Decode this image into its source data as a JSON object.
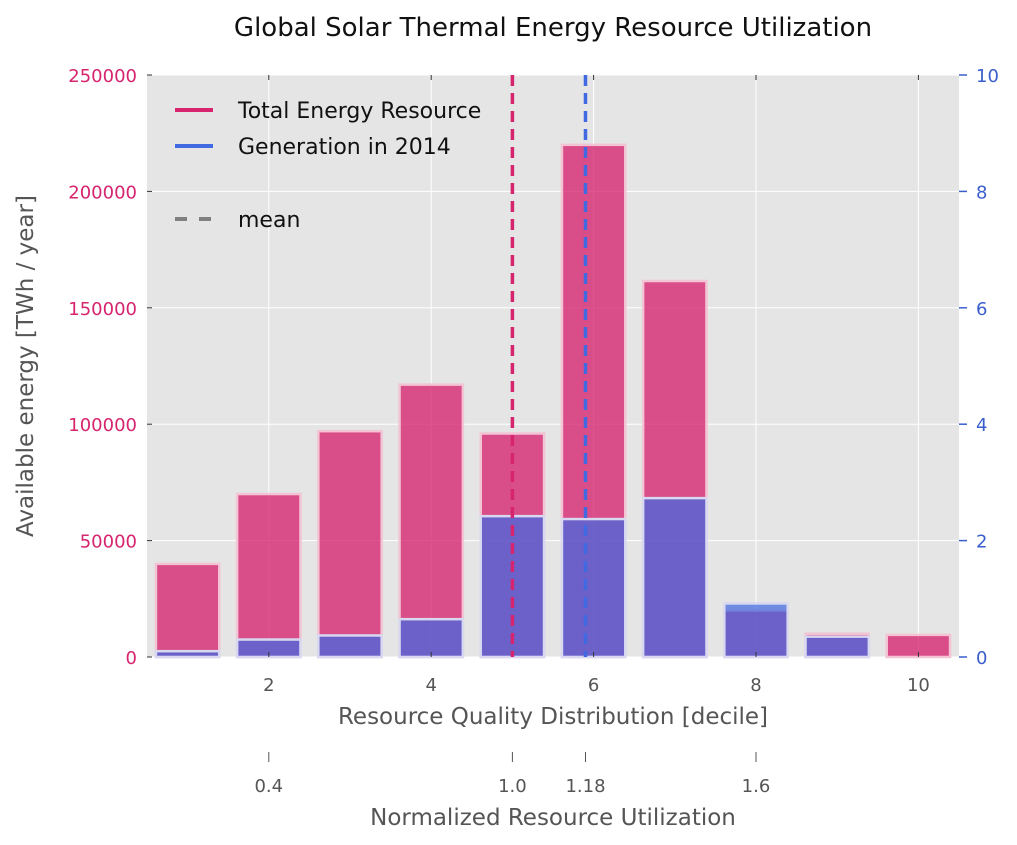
{
  "chart_data": {
    "type": "bar",
    "title": "Global Solar Thermal Energy Resource Utilization",
    "xlabel": "Resource Quality Distribution [decile]",
    "ylabel": "Available energy [TWh / year]",
    "x2label": "Normalized Resource Utilization",
    "xlim": [
      0.5,
      10.5
    ],
    "ylim": [
      0,
      250000
    ],
    "y2lim": [
      0,
      10
    ],
    "x_ticks": [
      2,
      4,
      6,
      8,
      10
    ],
    "y_ticks": [
      0,
      50000,
      100000,
      150000,
      200000,
      250000
    ],
    "y2_ticks": [
      0,
      2,
      4,
      6,
      8,
      10
    ],
    "x2_ticks": [
      {
        "x": 2,
        "label": "0.4"
      },
      {
        "x": 5,
        "label": "1.0"
      },
      {
        "x": 5.9,
        "label": "1.18"
      },
      {
        "x": 8,
        "label": "1.6"
      }
    ],
    "categories": [
      1,
      2,
      3,
      4,
      5,
      6,
      7,
      8,
      9,
      10
    ],
    "series": [
      {
        "name": "Total Energy Resource",
        "axis": "left",
        "color": "#d6246e",
        "values": [
          40000,
          70000,
          97000,
          117000,
          96000,
          220000,
          161500,
          20000,
          10000,
          9500
        ]
      },
      {
        "name": "Generation in 2014",
        "axis": "right",
        "color": "#4169e1",
        "values": [
          0.1,
          0.3,
          0.37,
          0.65,
          2.42,
          2.37,
          2.73,
          0.92,
          0.35,
          0.0
        ]
      }
    ],
    "mean_lines": [
      {
        "series": "Total Energy Resource",
        "x": 5.0,
        "color": "#d6246e"
      },
      {
        "series": "Generation in 2014",
        "x": 5.9,
        "color": "#4169e1"
      }
    ],
    "legend": [
      {
        "label": "Total Energy Resource",
        "color": "#d6246e",
        "style": "solid"
      },
      {
        "label": "Generation in 2014",
        "color": "#4169e1",
        "style": "solid"
      },
      {
        "label": "mean",
        "color": "#808080",
        "style": "dashed"
      }
    ],
    "legend_position": "top-left",
    "grid": true,
    "colors": {
      "left_axis": "#d6246e",
      "right_axis": "#3a5fcd",
      "plot_bg": "#e5e5e5"
    }
  }
}
